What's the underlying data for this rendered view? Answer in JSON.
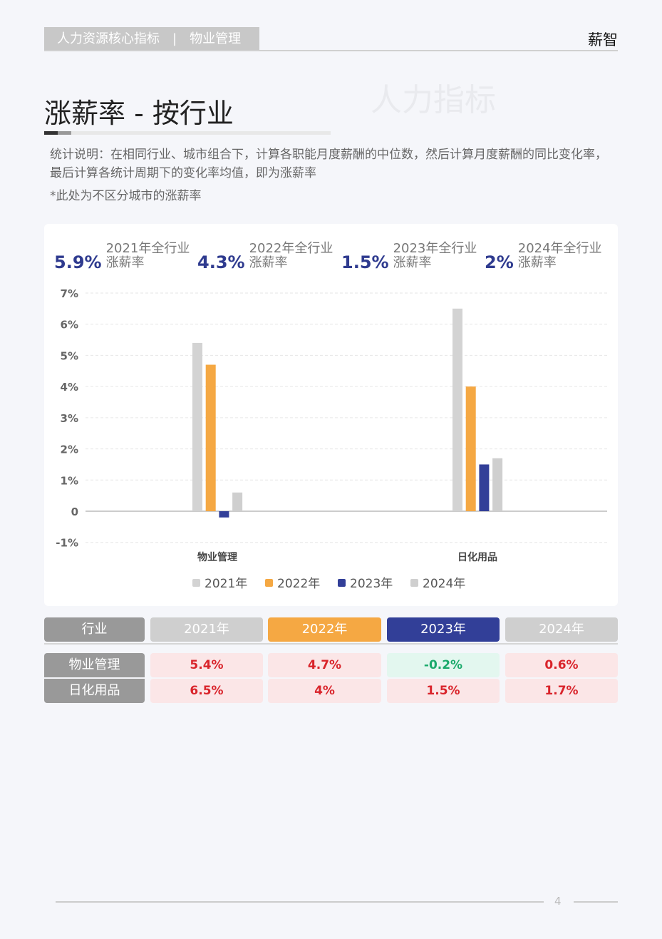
{
  "header": {
    "tag": "人力资源核心指标　|　物业管理",
    "brand": "薪智"
  },
  "ghost_title": "人力指标",
  "title": "涨薪率 - 按行业",
  "description": "统计说明：在相同行业、城市组合下，计算各职能月度薪酬的中位数，然后计算月度薪酬的同比变化率，最后计算各统计周期下的变化率均值，即为涨薪率",
  "note": "*此处为不区分城市的涨薪率",
  "kpis": [
    {
      "value": "5.9%",
      "label1": "2021年全行业",
      "label2": "涨薪率"
    },
    {
      "value": "4.3%",
      "label1": "2022年全行业",
      "label2": "涨薪率"
    },
    {
      "value": "1.5%",
      "label1": "2023年全行业",
      "label2": "涨薪率"
    },
    {
      "value": "2%",
      "label1": "2024年全行业",
      "label2": "涨薪率"
    }
  ],
  "chart_data": {
    "type": "bar",
    "categories": [
      "物业管理",
      "日化用品"
    ],
    "series": [
      {
        "name": "2021年",
        "color": "#d3d3d3",
        "values": [
          5.4,
          6.5
        ]
      },
      {
        "name": "2022年",
        "color": "#f5a843",
        "values": [
          4.7,
          4
        ]
      },
      {
        "name": "2023年",
        "color": "#323f98",
        "values": [
          -0.2,
          1.5
        ]
      },
      {
        "name": "2024年",
        "color": "#cfcfcf",
        "values": [
          0.6,
          1.7
        ]
      }
    ],
    "yticks": [
      "-1%",
      "0",
      "1%",
      "2%",
      "3%",
      "4%",
      "5%",
      "6%",
      "7%"
    ],
    "ylim": [
      -1,
      7
    ],
    "grid": true,
    "legend": "bottom"
  },
  "table": {
    "headers": [
      "行业",
      "2021年",
      "2022年",
      "2023年",
      "2024年"
    ],
    "header_colors": [
      "#999999",
      "#cfcfcf",
      "#f5a843",
      "#323f98",
      "#cfcfcf"
    ],
    "rows": [
      {
        "name": "物业管理",
        "values": [
          "5.4%",
          "4.7%",
          "-0.2%",
          "0.6%"
        ]
      },
      {
        "name": "日化用品",
        "values": [
          "6.5%",
          "4%",
          "1.5%",
          "1.7%"
        ]
      }
    ],
    "positive_color": "#d9242b",
    "negative_color": "#1aaa6b"
  },
  "page": "4"
}
